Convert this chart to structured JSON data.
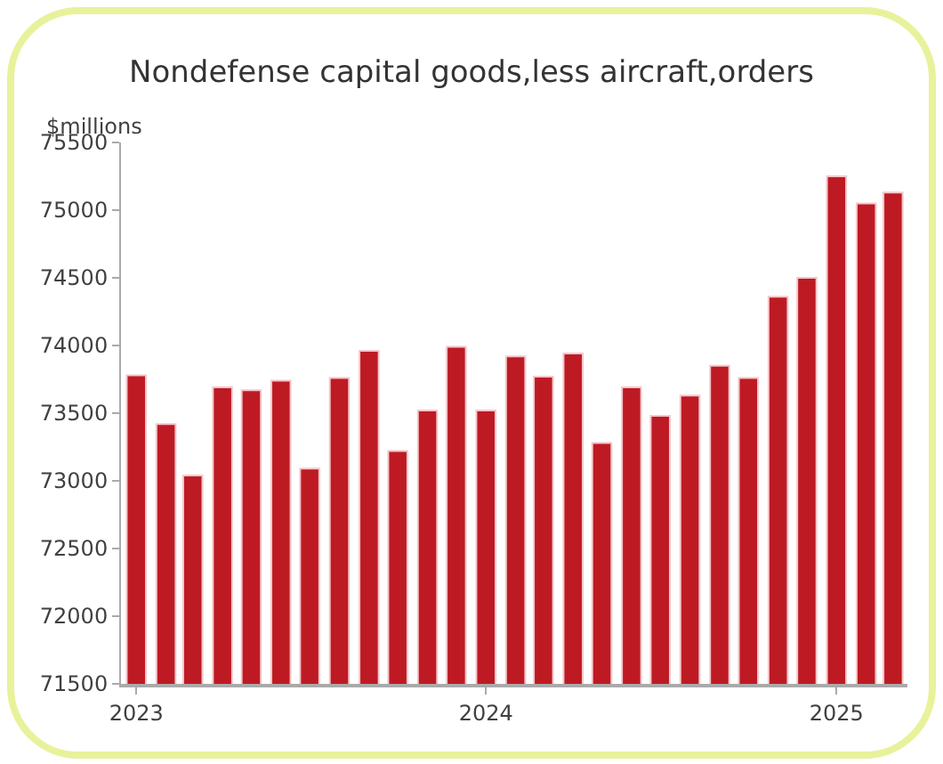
{
  "chart_data": {
    "type": "bar",
    "title": "Nondefense capital goods,less aircraft,orders",
    "ylabel": "$millions",
    "x": [
      "2023-01",
      "2023-02",
      "2023-03",
      "2023-04",
      "2023-05",
      "2023-06",
      "2023-07",
      "2023-08",
      "2023-09",
      "2023-10",
      "2023-11",
      "2023-12",
      "2024-01",
      "2024-02",
      "2024-03",
      "2024-04",
      "2024-05",
      "2024-06",
      "2024-07",
      "2024-08",
      "2024-09",
      "2024-10",
      "2024-11",
      "2024-12",
      "2025-01",
      "2025-02",
      "2025-03"
    ],
    "values": [
      73780,
      73420,
      73040,
      73690,
      73670,
      73740,
      73090,
      73760,
      73960,
      73220,
      73520,
      73990,
      73520,
      73920,
      73770,
      73940,
      73280,
      73690,
      73480,
      73630,
      73850,
      73760,
      74360,
      74500,
      75250,
      75050,
      75130
    ],
    "color": "#be1a24",
    "xlim": [
      "2022-12-16",
      "2025-03-16"
    ],
    "xticks": [
      {
        "value": "2023-01",
        "label": "2023"
      },
      {
        "value": "2024-01",
        "label": "2024"
      },
      {
        "value": "2025-01",
        "label": "2025"
      }
    ],
    "ylim": [
      71500,
      75500
    ],
    "yticks": [
      71500,
      72000,
      72500,
      73000,
      73500,
      74000,
      74500,
      75000,
      75500
    ],
    "grid": false,
    "legend": false
  }
}
